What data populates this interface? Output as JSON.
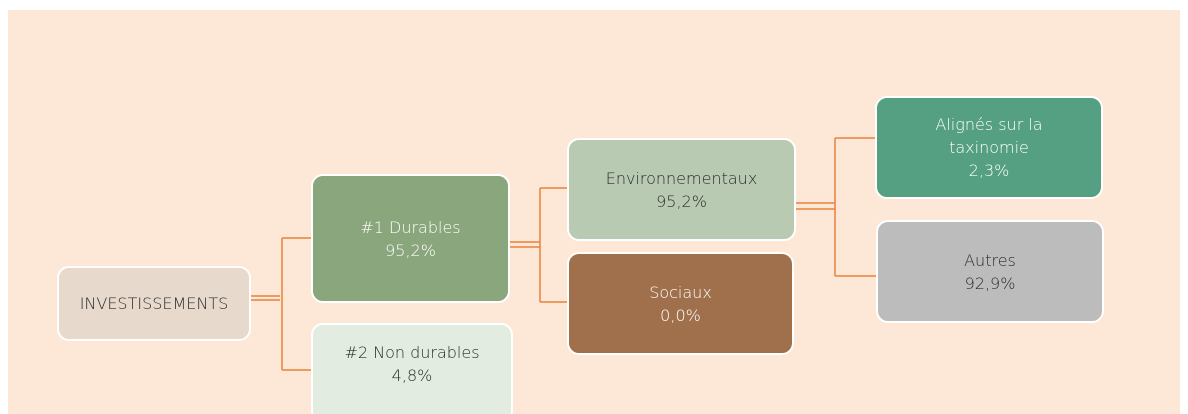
{
  "nodes": [
    {
      "label": "INVESTISSEMENTS"
    },
    {
      "label": "#1 Durables",
      "value": "95,2%"
    },
    {
      "label": "#2 Non durables",
      "value": "4,8%"
    },
    {
      "label": "Environnementaux",
      "value": "95,2%"
    },
    {
      "label": "Sociaux",
      "value": "0,0%"
    },
    {
      "label": "Alignés sur la taxinomie",
      "value": "2,3%"
    },
    {
      "label": "Autres",
      "value": "92,9%"
    }
  ]
}
